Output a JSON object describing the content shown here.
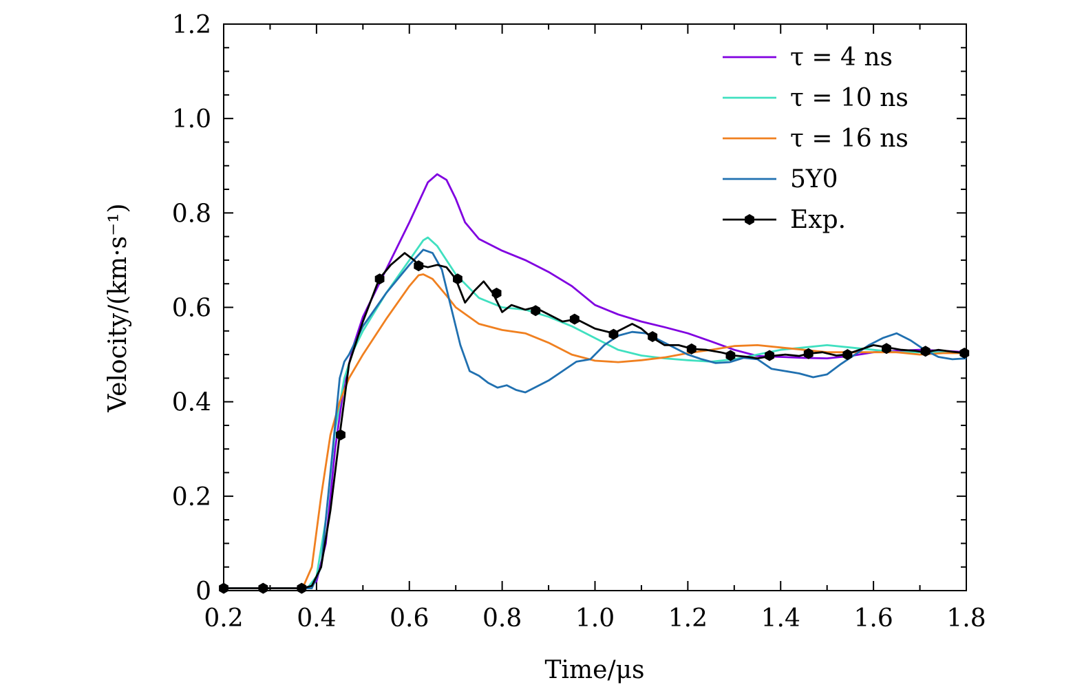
{
  "chart_data": {
    "type": "line",
    "title": "",
    "xlabel": "Time/μs",
    "ylabel": "Velocity/(km·s⁻¹)",
    "xlim": [
      0.2,
      1.8
    ],
    "ylim": [
      0,
      1.2
    ],
    "xticks": [
      0.2,
      0.4,
      0.6,
      0.8,
      1.0,
      1.2,
      1.4,
      1.6,
      1.8
    ],
    "xtick_labels": [
      "0.2",
      "0.4",
      "0.6",
      "0.8",
      "1.0",
      "1.2",
      "1.4",
      "1.6",
      "1.8"
    ],
    "yticks": [
      0,
      0.2,
      0.4,
      0.6,
      0.8,
      1.0,
      1.2
    ],
    "ytick_labels": [
      "0",
      "0.2",
      "0.4",
      "0.6",
      "0.8",
      "1.0",
      "1.2"
    ],
    "legend_position": "top-right",
    "series": [
      {
        "name": "τ = 4 ns",
        "color": "#8000e0",
        "marker": "none",
        "x": [
          0.2,
          0.38,
          0.4,
          0.42,
          0.44,
          0.46,
          0.48,
          0.5,
          0.55,
          0.6,
          0.64,
          0.66,
          0.68,
          0.7,
          0.72,
          0.75,
          0.8,
          0.85,
          0.9,
          0.95,
          1.0,
          1.05,
          1.1,
          1.15,
          1.2,
          1.25,
          1.3,
          1.35,
          1.4,
          1.45,
          1.5,
          1.55,
          1.6,
          1.65,
          1.7,
          1.75,
          1.8
        ],
        "y": [
          0.005,
          0.005,
          0.02,
          0.1,
          0.3,
          0.44,
          0.52,
          0.58,
          0.68,
          0.78,
          0.865,
          0.882,
          0.87,
          0.83,
          0.78,
          0.745,
          0.72,
          0.7,
          0.675,
          0.645,
          0.605,
          0.585,
          0.57,
          0.558,
          0.545,
          0.528,
          0.51,
          0.497,
          0.495,
          0.493,
          0.492,
          0.497,
          0.505,
          0.508,
          0.51,
          0.508,
          0.505
        ]
      },
      {
        "name": "τ = 10 ns",
        "color": "#40e0c0",
        "marker": "none",
        "x": [
          0.2,
          0.38,
          0.4,
          0.42,
          0.44,
          0.46,
          0.48,
          0.5,
          0.55,
          0.6,
          0.63,
          0.64,
          0.66,
          0.7,
          0.75,
          0.8,
          0.85,
          0.9,
          0.95,
          1.0,
          1.05,
          1.1,
          1.15,
          1.2,
          1.25,
          1.3,
          1.35,
          1.4,
          1.45,
          1.5,
          1.55,
          1.6,
          1.65,
          1.7,
          1.75,
          1.8
        ],
        "y": [
          0.005,
          0.005,
          0.03,
          0.15,
          0.34,
          0.45,
          0.51,
          0.55,
          0.63,
          0.7,
          0.742,
          0.748,
          0.73,
          0.67,
          0.62,
          0.6,
          0.595,
          0.58,
          0.56,
          0.535,
          0.51,
          0.498,
          0.492,
          0.488,
          0.485,
          0.49,
          0.5,
          0.51,
          0.515,
          0.52,
          0.515,
          0.51,
          0.505,
          0.505,
          0.505,
          0.503
        ]
      },
      {
        "name": "τ = 16 ns",
        "color": "#f08020",
        "marker": "none",
        "x": [
          0.2,
          0.37,
          0.39,
          0.41,
          0.43,
          0.45,
          0.47,
          0.5,
          0.55,
          0.6,
          0.62,
          0.63,
          0.65,
          0.68,
          0.7,
          0.75,
          0.8,
          0.85,
          0.9,
          0.95,
          1.0,
          1.05,
          1.1,
          1.15,
          1.2,
          1.25,
          1.3,
          1.35,
          1.4,
          1.45,
          1.5,
          1.55,
          1.6,
          1.65,
          1.7,
          1.75,
          1.8
        ],
        "y": [
          0.005,
          0.005,
          0.05,
          0.2,
          0.33,
          0.4,
          0.45,
          0.5,
          0.575,
          0.645,
          0.668,
          0.67,
          0.66,
          0.625,
          0.6,
          0.565,
          0.552,
          0.545,
          0.525,
          0.5,
          0.487,
          0.484,
          0.488,
          0.494,
          0.503,
          0.51,
          0.518,
          0.52,
          0.515,
          0.51,
          0.505,
          0.505,
          0.505,
          0.505,
          0.5,
          0.503,
          0.503
        ]
      },
      {
        "name": "5Y0",
        "color": "#2070b0",
        "marker": "none",
        "x": [
          0.2,
          0.39,
          0.41,
          0.43,
          0.45,
          0.46,
          0.47,
          0.5,
          0.55,
          0.6,
          0.63,
          0.65,
          0.67,
          0.69,
          0.71,
          0.73,
          0.75,
          0.77,
          0.79,
          0.81,
          0.83,
          0.85,
          0.87,
          0.9,
          0.93,
          0.96,
          0.99,
          1.02,
          1.05,
          1.08,
          1.11,
          1.14,
          1.17,
          1.2,
          1.23,
          1.26,
          1.29,
          1.32,
          1.35,
          1.38,
          1.41,
          1.44,
          1.47,
          1.5,
          1.53,
          1.56,
          1.59,
          1.62,
          1.65,
          1.68,
          1.71,
          1.74,
          1.77,
          1.8
        ],
        "y": [
          0.005,
          0.005,
          0.05,
          0.25,
          0.45,
          0.485,
          0.5,
          0.56,
          0.63,
          0.69,
          0.722,
          0.715,
          0.68,
          0.6,
          0.52,
          0.465,
          0.455,
          0.44,
          0.43,
          0.435,
          0.425,
          0.42,
          0.43,
          0.445,
          0.465,
          0.485,
          0.49,
          0.52,
          0.54,
          0.548,
          0.545,
          0.53,
          0.515,
          0.5,
          0.49,
          0.482,
          0.484,
          0.493,
          0.49,
          0.47,
          0.465,
          0.46,
          0.452,
          0.458,
          0.48,
          0.5,
          0.52,
          0.535,
          0.545,
          0.53,
          0.51,
          0.495,
          0.49,
          0.492
        ]
      },
      {
        "name": "Exp.",
        "color": "#000000",
        "marker": "hexagon",
        "x": [
          0.2,
          0.37,
          0.39,
          0.41,
          0.43,
          0.45,
          0.47,
          0.5,
          0.535,
          0.56,
          0.59,
          0.61,
          0.62,
          0.64,
          0.66,
          0.68,
          0.7,
          0.72,
          0.74,
          0.76,
          0.78,
          0.8,
          0.82,
          0.85,
          0.87,
          0.9,
          0.93,
          0.96,
          1.0,
          1.04,
          1.06,
          1.08,
          1.1,
          1.12,
          1.15,
          1.18,
          1.21,
          1.24,
          1.27,
          1.3,
          1.33,
          1.35,
          1.38,
          1.41,
          1.44,
          1.46,
          1.49,
          1.52,
          1.54,
          1.57,
          1.6,
          1.63,
          1.66,
          1.69,
          1.71,
          1.74,
          1.77,
          1.8
        ],
        "y": [
          0.005,
          0.005,
          0.01,
          0.05,
          0.17,
          0.33,
          0.48,
          0.57,
          0.66,
          0.69,
          0.715,
          0.7,
          0.69,
          0.685,
          0.69,
          0.685,
          0.66,
          0.61,
          0.635,
          0.655,
          0.63,
          0.59,
          0.605,
          0.595,
          0.6,
          0.585,
          0.57,
          0.575,
          0.555,
          0.545,
          0.555,
          0.565,
          0.555,
          0.538,
          0.52,
          0.52,
          0.512,
          0.51,
          0.505,
          0.498,
          0.495,
          0.492,
          0.497,
          0.5,
          0.497,
          0.502,
          0.505,
          0.498,
          0.5,
          0.51,
          0.52,
          0.515,
          0.51,
          0.508,
          0.505,
          0.51,
          0.506,
          0.503
        ]
      }
    ],
    "exp_markers": {
      "x": [
        0.2,
        0.285,
        0.368,
        0.452,
        0.536,
        0.62,
        0.704,
        0.788,
        0.872,
        0.956,
        1.04,
        1.124,
        1.208,
        1.292,
        1.376,
        1.46,
        1.544,
        1.628,
        1.712,
        1.796
      ],
      "y": [
        0.005,
        0.005,
        0.005,
        0.33,
        0.66,
        0.688,
        0.66,
        0.63,
        0.593,
        0.575,
        0.543,
        0.538,
        0.512,
        0.498,
        0.498,
        0.502,
        0.5,
        0.513,
        0.507,
        0.503
      ]
    }
  }
}
